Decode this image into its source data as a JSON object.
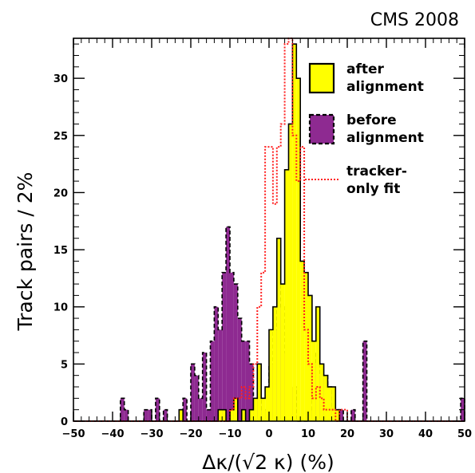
{
  "experiment_label": "CMS 2008",
  "chart_data": {
    "type": "histogram",
    "xlabel": "Δκ/(√2 κ) (%)",
    "ylabel": "Track pairs / 2%",
    "xlim": [
      -50,
      50
    ],
    "ylim": [
      0,
      33.5
    ],
    "x_ticks": [
      -50,
      -40,
      -30,
      -20,
      -10,
      0,
      10,
      20,
      30,
      40,
      50
    ],
    "x_tick_labels": [
      "−50",
      "−40",
      "−30",
      "−20",
      "−10",
      "0",
      "10",
      "20",
      "30",
      "40",
      "50"
    ],
    "y_ticks": [
      0,
      5,
      10,
      15,
      20,
      25,
      30
    ],
    "y_tick_labels": [
      "0",
      "5",
      "10",
      "15",
      "20",
      "25",
      "30"
    ],
    "grid": false,
    "legend_position": "top-right",
    "bin_edges_start": -50,
    "bin_width": 1,
    "series": [
      {
        "name": "after alignment",
        "style": "filled",
        "fill": "#ffff00",
        "stroke": "#000000",
        "dash": "",
        "values": [
          0,
          0,
          0,
          0,
          0,
          0,
          0,
          0,
          0,
          0,
          0,
          0,
          0,
          0,
          0,
          0,
          0,
          0,
          0,
          0,
          0,
          0,
          0,
          0,
          0,
          0,
          0,
          1,
          0,
          0,
          0,
          0,
          0,
          0,
          0,
          0,
          0,
          1,
          1,
          0,
          1,
          2,
          0,
          1,
          0,
          1,
          2,
          5,
          2,
          3,
          8,
          10,
          16,
          12,
          22,
          26,
          33,
          30,
          14,
          13,
          11,
          7,
          10,
          5,
          4,
          3,
          3,
          1,
          0,
          0,
          0,
          0,
          0,
          0,
          0,
          0,
          0,
          0,
          0,
          0,
          0,
          0,
          0,
          0,
          0,
          0,
          0,
          0,
          0,
          0,
          0,
          0,
          0,
          0,
          0,
          0,
          0,
          0,
          0,
          0
        ]
      },
      {
        "name": "before alignment",
        "style": "filled",
        "fill": "#8e2a91",
        "stroke": "#000000",
        "dash": "5,3",
        "values": [
          0,
          0,
          0,
          0,
          0,
          0,
          0,
          0,
          0,
          0,
          0,
          0,
          2,
          1,
          0,
          0,
          0,
          0,
          1,
          1,
          0,
          2,
          0,
          1,
          0,
          0,
          0,
          1,
          2,
          0,
          5,
          4,
          2,
          6,
          1,
          7,
          10,
          8,
          13,
          17,
          13,
          12,
          9,
          7,
          7,
          5,
          2,
          3,
          1,
          1,
          5,
          8,
          13,
          10,
          6,
          3,
          3,
          0,
          0,
          0,
          1,
          5,
          6,
          4,
          4,
          3,
          1,
          1,
          1,
          0,
          0,
          1,
          0,
          0,
          7,
          0,
          0,
          0,
          0,
          0,
          0,
          0,
          0,
          0,
          0,
          0,
          0,
          0,
          0,
          0,
          0,
          0,
          0,
          0,
          0,
          0,
          0,
          0,
          0,
          2
        ]
      },
      {
        "name": "tracker-only fit",
        "style": "line",
        "fill": "none",
        "stroke": "#ff1f1f",
        "dash": "2,2",
        "values": [
          0,
          0,
          0,
          0,
          0,
          0,
          0,
          0,
          0,
          0,
          0,
          0,
          0,
          0,
          0,
          0,
          0,
          0,
          0,
          0,
          0,
          0,
          0,
          0,
          0,
          0,
          0,
          0,
          0,
          0,
          0,
          0,
          0,
          0,
          0,
          0,
          0,
          0,
          0,
          0,
          1,
          2,
          2,
          3,
          2,
          3,
          5,
          10,
          13,
          24,
          24,
          19,
          24,
          26,
          33,
          34,
          25,
          21,
          24,
          8,
          5,
          2,
          3,
          2,
          1,
          1,
          1,
          0,
          1,
          1,
          0,
          0,
          0,
          0,
          0,
          0,
          0,
          0,
          0,
          0,
          0,
          0,
          0,
          0,
          0,
          0,
          0,
          0,
          0,
          0,
          0,
          0,
          0,
          0,
          0,
          0,
          0,
          0,
          0,
          0
        ]
      }
    ]
  },
  "legend": {
    "items": [
      {
        "line1": "after",
        "line2": "alignment",
        "swatch": "filled",
        "fill": "#ffff00",
        "stroke": "#000000",
        "dash": ""
      },
      {
        "line1": "before",
        "line2": "alignment",
        "swatch": "filled",
        "fill": "#8e2a91",
        "stroke": "#000000",
        "dash": "5,3"
      },
      {
        "line1": "tracker-",
        "line2": "only fit",
        "swatch": "line",
        "fill": "none",
        "stroke": "#ff1f1f",
        "dash": "2,2"
      }
    ]
  }
}
